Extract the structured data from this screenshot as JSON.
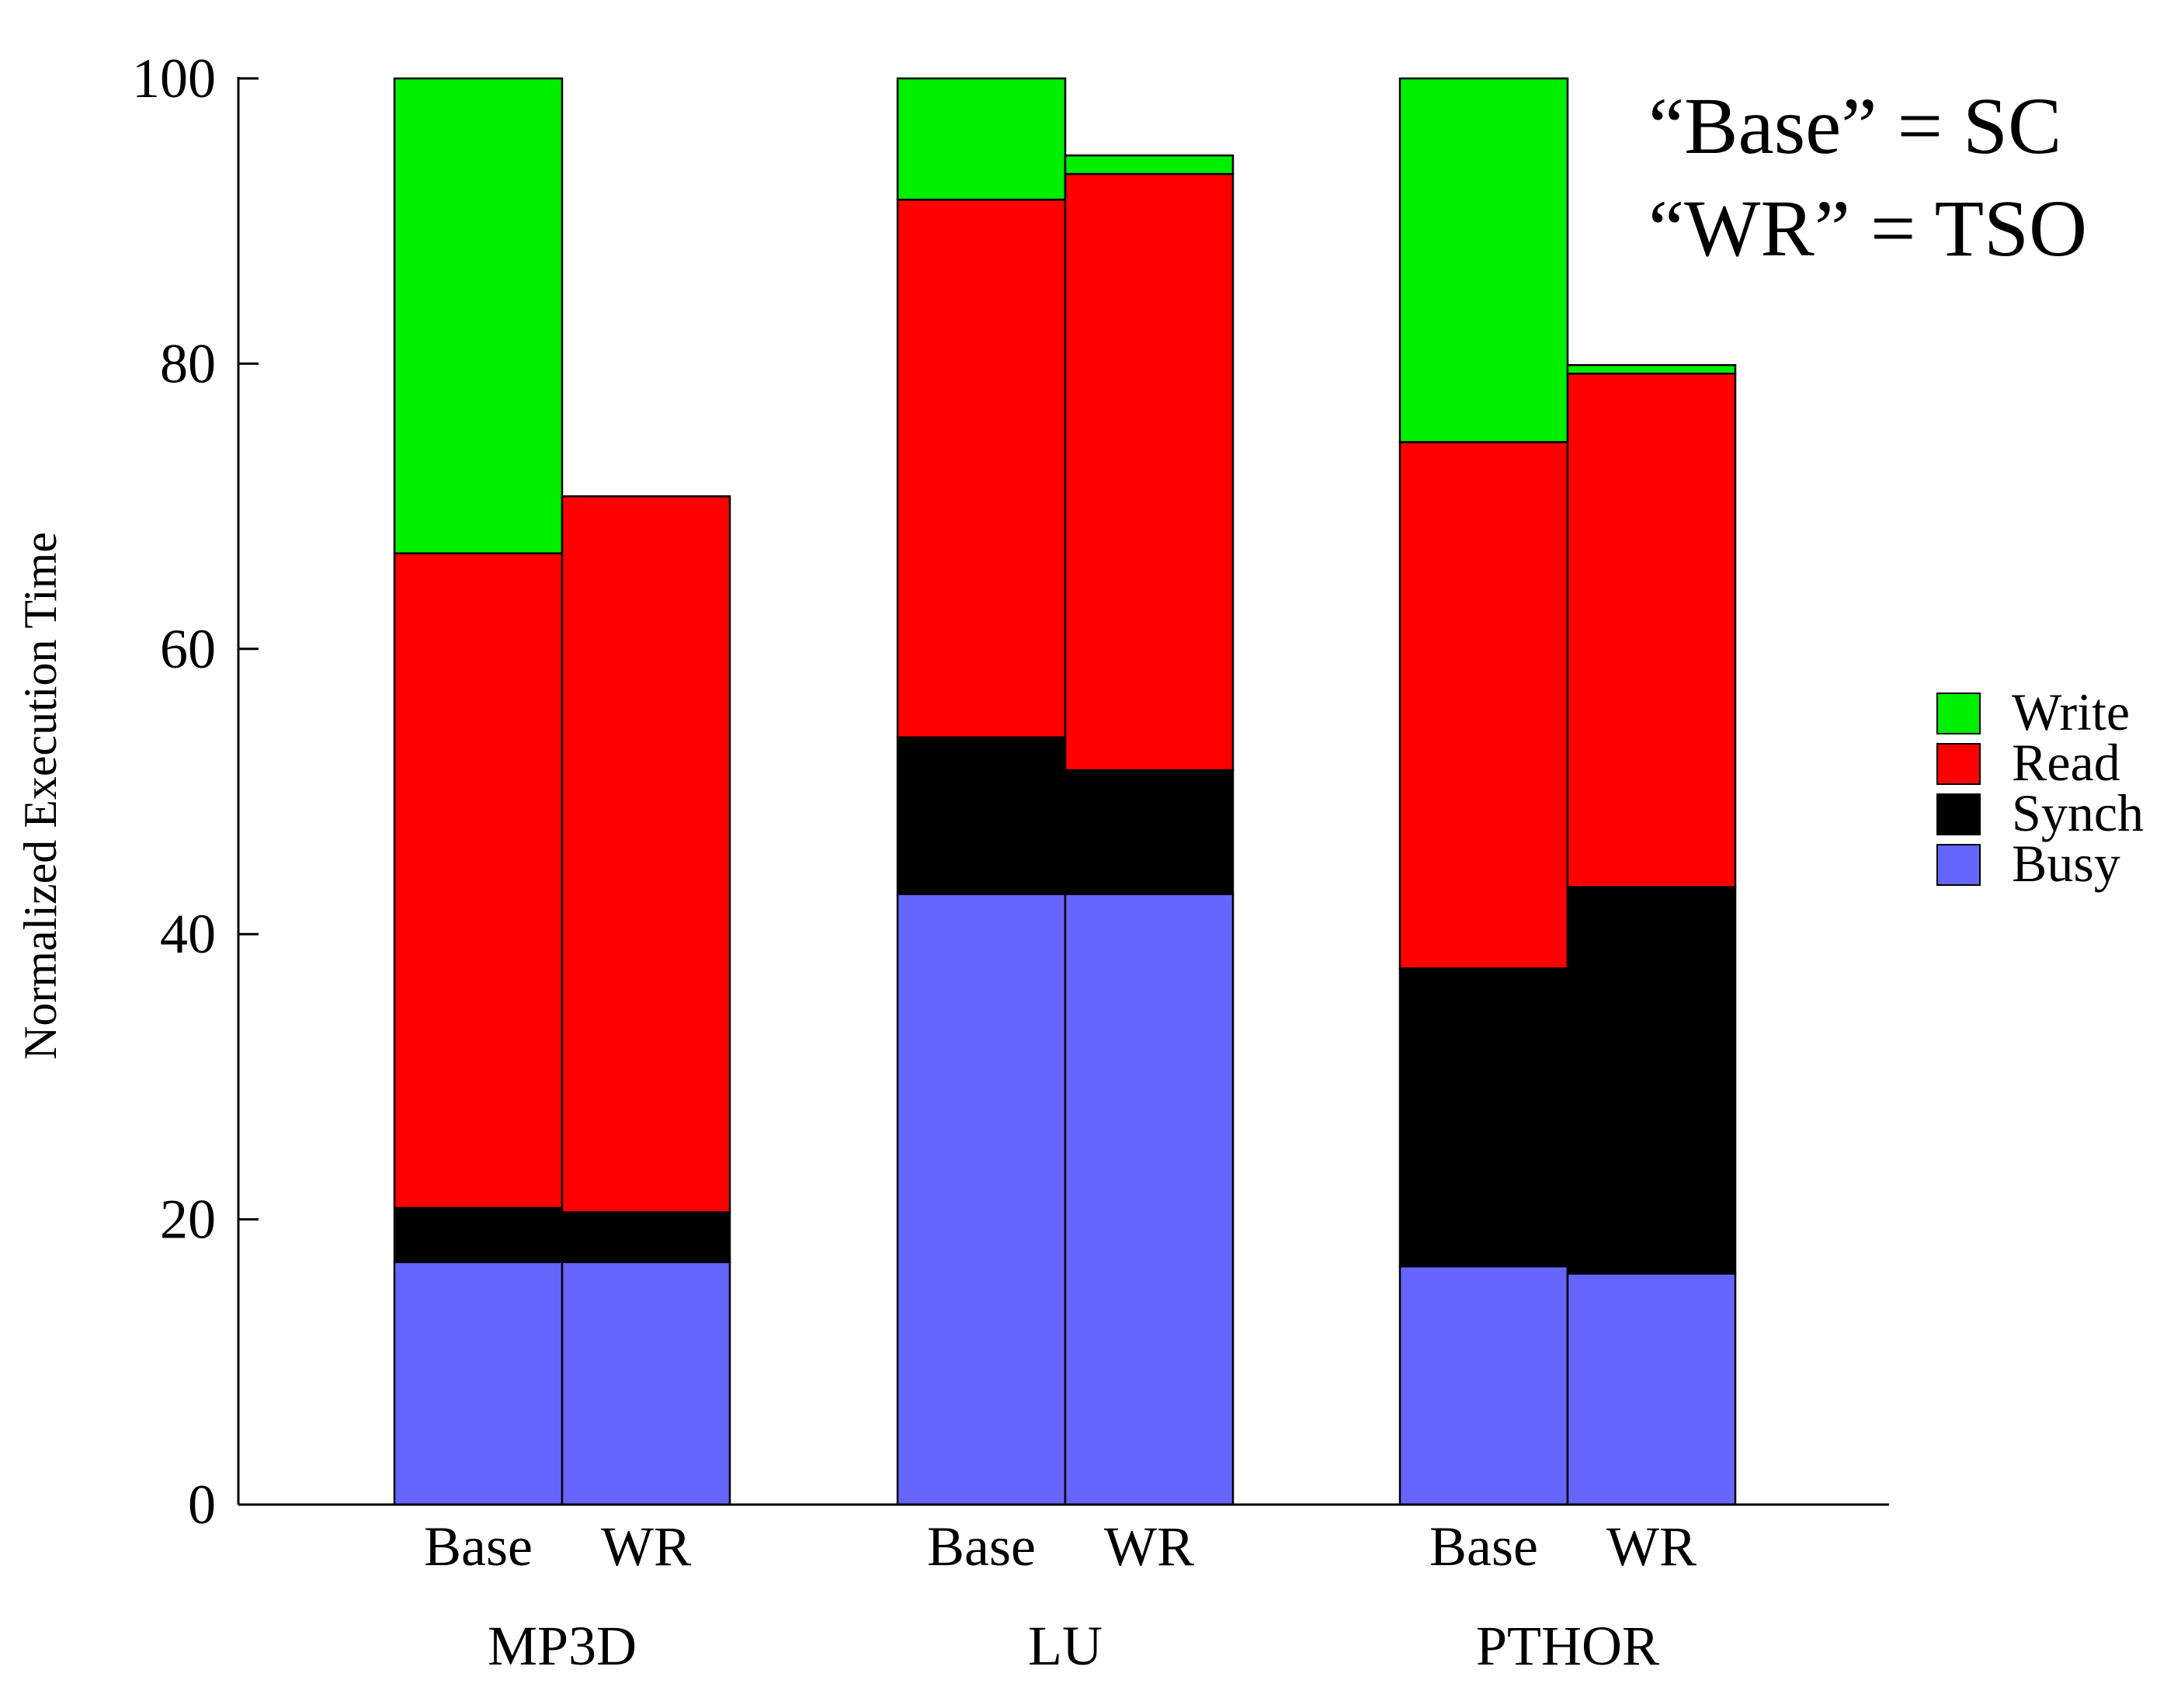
{
  "chart_data": {
    "type": "bar",
    "stacked": true,
    "ylabel": "Normalized Execution Time",
    "ylim": [
      0,
      100
    ],
    "yticks": [
      0,
      20,
      40,
      60,
      80,
      100
    ],
    "grid": false,
    "legend_position": "right",
    "annotation_lines": [
      "“Base” = SC",
      "“WR” = TSO"
    ],
    "groups": [
      {
        "name": "MP3D",
        "bars": [
          "Base",
          "WR"
        ]
      },
      {
        "name": "LU",
        "bars": [
          "Base",
          "WR"
        ]
      },
      {
        "name": "PTHOR",
        "bars": [
          "Base",
          "WR"
        ]
      }
    ],
    "categories": [
      "MP3D Base",
      "MP3D WR",
      "LU Base",
      "LU WR",
      "PTHOR Base",
      "PTHOR WR"
    ],
    "series": [
      {
        "name": "Busy",
        "color": "#6666ff",
        "values": [
          17.0,
          17.0,
          42.8,
          42.8,
          16.7,
          16.2
        ]
      },
      {
        "name": "Synch",
        "color": "#000000",
        "values": [
          3.8,
          3.5,
          11.0,
          8.7,
          20.9,
          27.1
        ]
      },
      {
        "name": "Read",
        "color": "#ff0000",
        "values": [
          45.9,
          50.2,
          37.7,
          41.8,
          36.9,
          36.0
        ]
      },
      {
        "name": "Write",
        "color": "#00ee00",
        "values": [
          33.3,
          0.0,
          8.5,
          1.3,
          25.5,
          0.6
        ]
      }
    ],
    "legend_order": [
      "Write",
      "Read",
      "Synch",
      "Busy"
    ]
  }
}
